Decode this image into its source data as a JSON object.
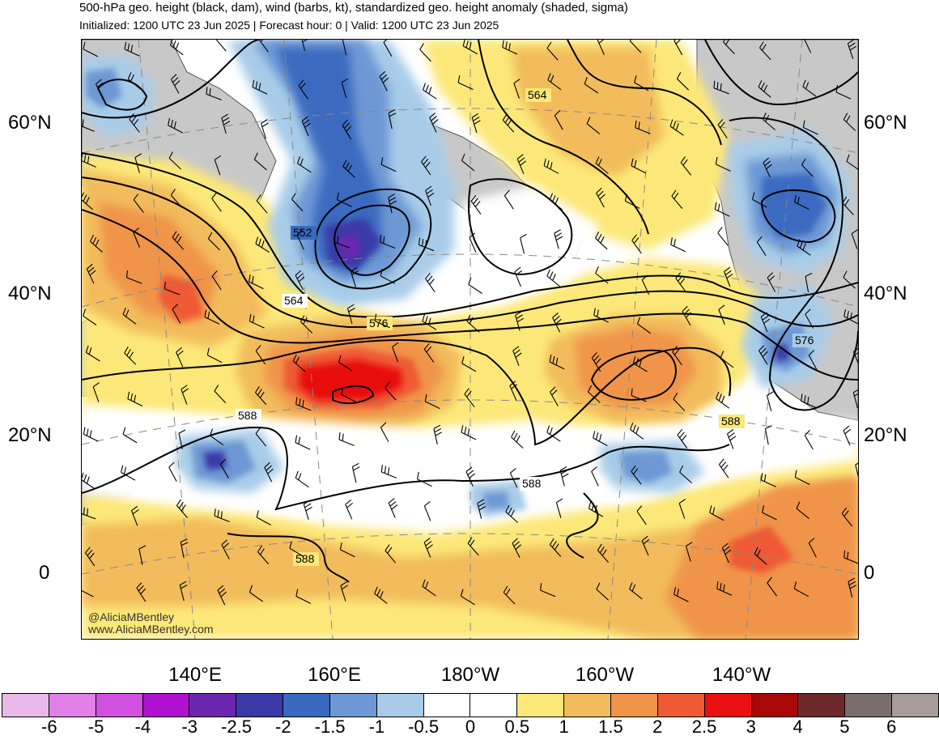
{
  "header": {
    "title": "500-hPa geo. height (black, dam), wind (barbs, kt), standardized geo. height anomaly (shaded, sigma)",
    "subtitle": "Initialized: 1200 UTC 23 Jun 2025 | Forecast hour: 0 | Valid: 1200 UTC 23 Jun 2025"
  },
  "map": {
    "region": "North Pacific",
    "latitude_labels": [
      "60°N",
      "40°N",
      "20°N",
      "0"
    ],
    "longitude_labels": [
      "140°E",
      "160°E",
      "180°W",
      "160°W",
      "140°W"
    ],
    "contour_labels": [
      "564",
      "552",
      "564",
      "576",
      "576",
      "588",
      "588",
      "588",
      "588"
    ],
    "contour_units": "dam",
    "wind_units": "kt",
    "anomaly_units": "sigma",
    "colors": {
      "land": "#c8c8c8",
      "coastline": "#555555",
      "contour": "#000000",
      "graticule": "#888888"
    }
  },
  "colorbar": {
    "ticks": [
      "-6",
      "-5",
      "-4",
      "-3",
      "-2.5",
      "-2",
      "-1.5",
      "-1",
      "-0.5",
      "0",
      "0.5",
      "1",
      "1.5",
      "2",
      "2.5",
      "3",
      "4",
      "5",
      "6"
    ],
    "colors": [
      "#e8b8e8",
      "#e080e8",
      "#d050e0",
      "#b010d0",
      "#6a28b0",
      "#3a3aa8",
      "#3a6ac0",
      "#6e98d4",
      "#a8cce8",
      "#ffffff",
      "#ffffff",
      "#fce878",
      "#f2bc5c",
      "#f09448",
      "#ee5a34",
      "#e81010",
      "#a80808",
      "#6e2a2a",
      "#7a6e6c",
      "#a89c9a"
    ]
  },
  "credits": {
    "handle": "@AliciaMBentley",
    "website": "www.AliciaMBentley.com"
  }
}
